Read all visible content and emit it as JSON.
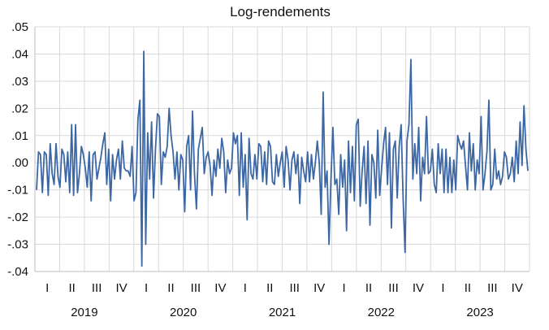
{
  "chart_data": {
    "type": "line",
    "title": "Log-rendements",
    "xlabel": "",
    "ylabel": "",
    "ylim": [
      -0.04,
      0.05
    ],
    "y_ticks": [
      ".05",
      ".04",
      ".03",
      ".02",
      ".01",
      ".00",
      "-.01",
      "-.02",
      "-.03",
      "-.04"
    ],
    "grid": true,
    "quarter_labels": [
      "I",
      "II",
      "III",
      "IV",
      "I",
      "II",
      "III",
      "IV",
      "I",
      "II",
      "III",
      "IV",
      "I",
      "II",
      "III",
      "IV",
      "I",
      "II",
      "III",
      "IV"
    ],
    "year_labels": [
      "2019",
      "2020",
      "2021",
      "2022",
      "2023"
    ],
    "line_color": "#3c67a4",
    "series": [
      {
        "values": [
          -0.01,
          0.004,
          0.003,
          -0.011,
          0.004,
          0.003,
          -0.012,
          0.007,
          -0.004,
          -0.008,
          0.007,
          -0.005,
          -0.009,
          0.005,
          0.003,
          -0.007,
          0.004,
          -0.011,
          0.014,
          -0.012,
          0.014,
          -0.011,
          -0.004,
          0.006,
          0.003,
          -0.002,
          -0.009,
          0.004,
          -0.014,
          0.003,
          0.004,
          -0.006,
          -0.002,
          0.002,
          0.007,
          0.011,
          -0.008,
          0.005,
          -0.014,
          0.003,
          -0.006,
          0.001,
          0.005,
          -0.006,
          0.008,
          -0.002,
          -0.003,
          -0.003,
          -0.005,
          0.006,
          -0.014,
          -0.011,
          0.016,
          0.023,
          -0.038,
          0.041,
          -0.03,
          0.011,
          -0.006,
          0.015,
          -0.013,
          0.005,
          0.018,
          0.017,
          -0.008,
          0.004,
          0.002,
          0.006,
          0.02,
          0.01,
          0.004,
          -0.006,
          0.004,
          -0.01,
          0.003,
          0.001,
          -0.018,
          0.006,
          0.01,
          -0.01,
          0.019,
          -0.004,
          -0.017,
          0.005,
          0.009,
          0.013,
          -0.004,
          0.002,
          0.004,
          -0.001,
          -0.012,
          0.001,
          -0.005,
          0.005,
          -0.002,
          0.009,
          0.004,
          -0.011,
          0.001,
          -0.004,
          -0.002,
          0.011,
          0.007,
          0.01,
          -0.012,
          0.011,
          -0.009,
          0.003,
          -0.021,
          0.009,
          -0.004,
          -0.006,
          0.003,
          -0.006,
          0.007,
          0.006,
          -0.007,
          0.004,
          -0.008,
          0.008,
          0.006,
          -0.007,
          -0.008,
          0.003,
          -0.005,
          0.0,
          0.004,
          -0.009,
          0.006,
          0.001,
          -0.01,
          0.001,
          0.004,
          -0.004,
          0.003,
          -0.015,
          0.002,
          -0.003,
          -0.007,
          0.004,
          -0.007,
          0.003,
          -0.006,
          0.0,
          0.008,
          0.0,
          -0.019,
          0.026,
          -0.009,
          -0.003,
          -0.03,
          -0.006,
          0.013,
          -0.008,
          -0.006,
          -0.019,
          0.003,
          -0.009,
          0.001,
          -0.025,
          0.008,
          -0.011,
          0.006,
          -0.014,
          0.014,
          0.016,
          -0.016,
          -0.003,
          0.006,
          -0.015,
          0.008,
          -0.023,
          0.003,
          0.0,
          -0.013,
          0.012,
          -0.012,
          -0.002,
          0.007,
          0.013,
          -0.008,
          0.011,
          -0.024,
          0.005,
          0.008,
          -0.013,
          0.006,
          0.014,
          -0.013,
          -0.033,
          0.008,
          0.014,
          0.038,
          -0.006,
          0.007,
          -0.004,
          0.013,
          -0.014,
          0.002,
          -0.004,
          0.017,
          -0.004,
          -0.003,
          0.005,
          -0.008,
          -0.011,
          0.007,
          -0.004,
          0.005,
          -0.011,
          0.005,
          -0.011,
          0.002,
          -0.011,
          0.001,
          -0.01,
          0.01,
          0.007,
          0.005,
          0.008,
          -0.001,
          -0.01,
          0.011,
          -0.003,
          0.007,
          -0.01,
          0.001,
          -0.004,
          0.017,
          -0.01,
          -0.004,
          0.004,
          0.023,
          -0.01,
          -0.008,
          0.005,
          -0.006,
          -0.003,
          -0.008,
          -0.005,
          0.004,
          0.002,
          -0.006,
          -0.004,
          0.002,
          -0.007,
          0.008,
          -0.004,
          0.015,
          -0.001,
          0.021,
          0.005,
          -0.003
        ]
      }
    ]
  }
}
